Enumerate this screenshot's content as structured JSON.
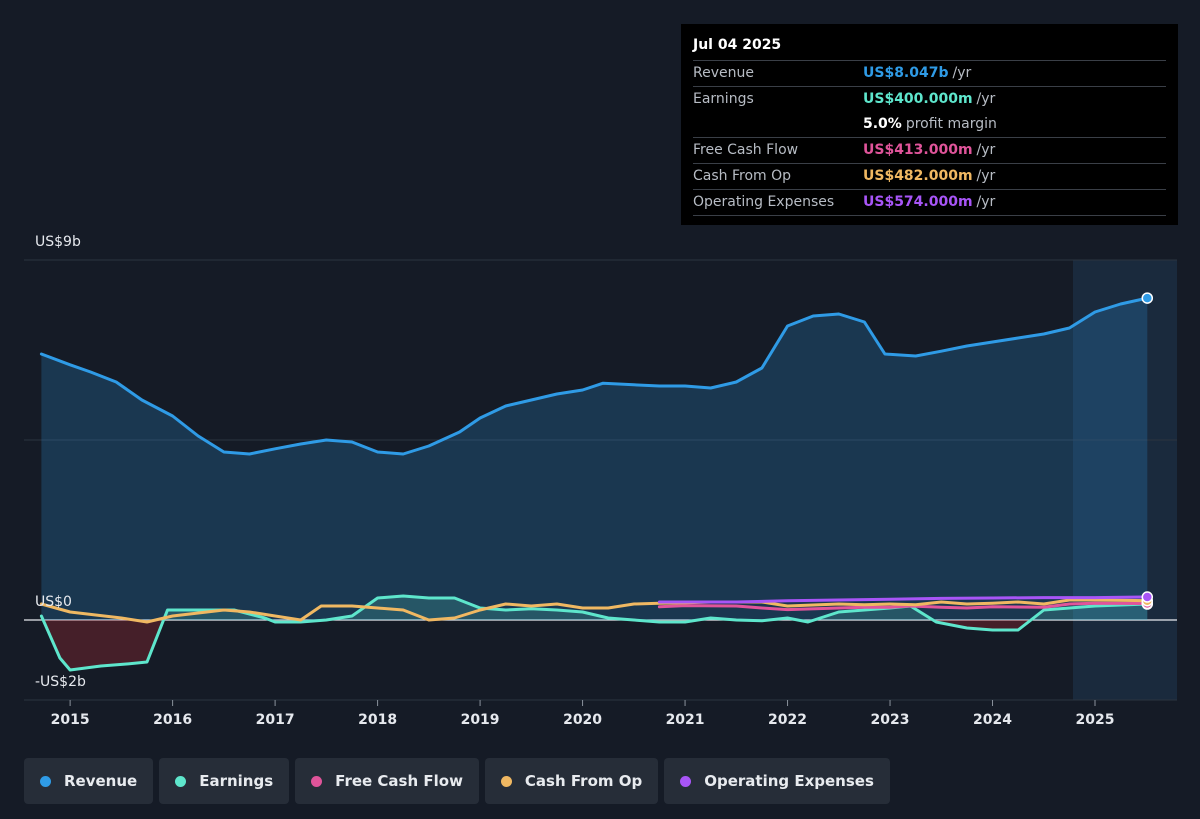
{
  "tooltip": {
    "date": "Jul 04 2025",
    "rows": [
      {
        "label": "Revenue",
        "value": "US$8.047b",
        "unit": "/yr",
        "color": "#2f9be6"
      },
      {
        "label": "Earnings",
        "value": "US$400.000m",
        "unit": "/yr",
        "color": "#5ee6cc"
      },
      {
        "label": "",
        "value": "5.0%",
        "unit": "profit margin",
        "color": "#ffffff"
      },
      {
        "label": "Free Cash Flow",
        "value": "US$413.000m",
        "unit": "/yr",
        "color": "#e0549a"
      },
      {
        "label": "Cash From Op",
        "value": "US$482.000m",
        "unit": "/yr",
        "color": "#f0b862"
      },
      {
        "label": "Operating Expenses",
        "value": "US$574.000m",
        "unit": "/yr",
        "color": "#a855f7"
      }
    ]
  },
  "y_labels": {
    "top": "US$9b",
    "zero": "US$0",
    "bottom": "-US$2b"
  },
  "legend": [
    {
      "label": "Revenue",
      "color": "#2f9be6"
    },
    {
      "label": "Earnings",
      "color": "#5ee6cc"
    },
    {
      "label": "Free Cash Flow",
      "color": "#e0549a"
    },
    {
      "label": "Cash From Op",
      "color": "#f0b862"
    },
    {
      "label": "Operating Expenses",
      "color": "#a855f7"
    }
  ],
  "chart_data": {
    "type": "area",
    "x_tick_labels": [
      "2015",
      "2016",
      "2017",
      "2018",
      "2019",
      "2020",
      "2021",
      "2022",
      "2023",
      "2024",
      "2025"
    ],
    "x_range": [
      2014.55,
      2025.8
    ],
    "ylim": [
      -2,
      9
    ],
    "unit": "US$ billions",
    "series": [
      {
        "name": "Revenue",
        "color": "#2f9be6",
        "fill": true,
        "points": [
          [
            2014.72,
            6.65
          ],
          [
            2015.0,
            6.38
          ],
          [
            2015.2,
            6.2
          ],
          [
            2015.45,
            5.95
          ],
          [
            2015.7,
            5.5
          ],
          [
            2016.0,
            5.1
          ],
          [
            2016.25,
            4.6
          ],
          [
            2016.5,
            4.2
          ],
          [
            2016.75,
            4.15
          ],
          [
            2017.0,
            4.28
          ],
          [
            2017.25,
            4.4
          ],
          [
            2017.5,
            4.5
          ],
          [
            2017.75,
            4.45
          ],
          [
            2018.0,
            4.2
          ],
          [
            2018.25,
            4.15
          ],
          [
            2018.5,
            4.35
          ],
          [
            2018.8,
            4.7
          ],
          [
            2019.0,
            5.05
          ],
          [
            2019.25,
            5.35
          ],
          [
            2019.5,
            5.5
          ],
          [
            2019.75,
            5.65
          ],
          [
            2020.0,
            5.75
          ],
          [
            2020.2,
            5.92
          ],
          [
            2020.5,
            5.88
          ],
          [
            2020.75,
            5.85
          ],
          [
            2021.0,
            5.85
          ],
          [
            2021.25,
            5.8
          ],
          [
            2021.5,
            5.95
          ],
          [
            2021.75,
            6.3
          ],
          [
            2022.0,
            7.35
          ],
          [
            2022.25,
            7.6
          ],
          [
            2022.5,
            7.65
          ],
          [
            2022.75,
            7.45
          ],
          [
            2022.95,
            6.65
          ],
          [
            2023.25,
            6.6
          ],
          [
            2023.5,
            6.72
          ],
          [
            2023.75,
            6.85
          ],
          [
            2024.0,
            6.95
          ],
          [
            2024.25,
            7.05
          ],
          [
            2024.5,
            7.15
          ],
          [
            2024.75,
            7.3
          ],
          [
            2025.0,
            7.7
          ],
          [
            2025.25,
            7.9
          ],
          [
            2025.51,
            8.047
          ]
        ]
      },
      {
        "name": "Earnings",
        "color": "#5ee6cc",
        "fill": true,
        "points": [
          [
            2014.72,
            0.1
          ],
          [
            2014.9,
            -0.95
          ],
          [
            2015.0,
            -1.25
          ],
          [
            2015.3,
            -1.15
          ],
          [
            2015.55,
            -1.1
          ],
          [
            2015.75,
            -1.05
          ],
          [
            2015.95,
            0.25
          ],
          [
            2016.25,
            0.25
          ],
          [
            2016.6,
            0.25
          ],
          [
            2016.9,
            0.05
          ],
          [
            2017.0,
            -0.05
          ],
          [
            2017.25,
            -0.05
          ],
          [
            2017.5,
            0.0
          ],
          [
            2017.75,
            0.1
          ],
          [
            2018.0,
            0.55
          ],
          [
            2018.25,
            0.6
          ],
          [
            2018.5,
            0.55
          ],
          [
            2018.75,
            0.55
          ],
          [
            2019.0,
            0.3
          ],
          [
            2019.25,
            0.25
          ],
          [
            2019.5,
            0.28
          ],
          [
            2019.75,
            0.25
          ],
          [
            2020.0,
            0.2
          ],
          [
            2020.25,
            0.05
          ],
          [
            2020.5,
            0.0
          ],
          [
            2020.75,
            -0.05
          ],
          [
            2021.0,
            -0.05
          ],
          [
            2021.25,
            0.05
          ],
          [
            2021.5,
            0.0
          ],
          [
            2021.75,
            -0.02
          ],
          [
            2022.0,
            0.05
          ],
          [
            2022.2,
            -0.05
          ],
          [
            2022.5,
            0.2
          ],
          [
            2022.75,
            0.25
          ],
          [
            2023.0,
            0.3
          ],
          [
            2023.2,
            0.35
          ],
          [
            2023.45,
            -0.05
          ],
          [
            2023.75,
            -0.2
          ],
          [
            2024.0,
            -0.25
          ],
          [
            2024.25,
            -0.25
          ],
          [
            2024.5,
            0.25
          ],
          [
            2024.75,
            0.3
          ],
          [
            2025.0,
            0.35
          ],
          [
            2025.51,
            0.4
          ]
        ]
      },
      {
        "name": "Free Cash Flow",
        "color": "#e0549a",
        "fill": false,
        "points": [
          [
            2020.75,
            0.33
          ],
          [
            2021.0,
            0.36
          ],
          [
            2021.5,
            0.35
          ],
          [
            2021.75,
            0.3
          ],
          [
            2022.0,
            0.26
          ],
          [
            2022.5,
            0.3
          ],
          [
            2022.75,
            0.32
          ],
          [
            2023.0,
            0.32
          ],
          [
            2023.2,
            0.35
          ],
          [
            2023.5,
            0.32
          ],
          [
            2023.75,
            0.3
          ],
          [
            2024.0,
            0.33
          ],
          [
            2024.5,
            0.32
          ],
          [
            2024.75,
            0.4
          ],
          [
            2025.0,
            0.42
          ],
          [
            2025.51,
            0.413
          ]
        ]
      },
      {
        "name": "Cash From Op",
        "color": "#f0b862",
        "fill": false,
        "points": [
          [
            2014.72,
            0.4
          ],
          [
            2015.0,
            0.2
          ],
          [
            2015.5,
            0.05
          ],
          [
            2015.75,
            -0.05
          ],
          [
            2016.0,
            0.1
          ],
          [
            2016.5,
            0.25
          ],
          [
            2016.75,
            0.2
          ],
          [
            2017.0,
            0.1
          ],
          [
            2017.25,
            0.0
          ],
          [
            2017.45,
            0.35
          ],
          [
            2017.75,
            0.35
          ],
          [
            2018.0,
            0.3
          ],
          [
            2018.25,
            0.25
          ],
          [
            2018.5,
            0.0
          ],
          [
            2018.75,
            0.05
          ],
          [
            2019.0,
            0.25
          ],
          [
            2019.25,
            0.4
          ],
          [
            2019.5,
            0.35
          ],
          [
            2019.75,
            0.4
          ],
          [
            2020.0,
            0.3
          ],
          [
            2020.25,
            0.3
          ],
          [
            2020.5,
            0.4
          ],
          [
            2020.75,
            0.42
          ],
          [
            2021.0,
            0.43
          ],
          [
            2021.25,
            0.45
          ],
          [
            2021.5,
            0.45
          ],
          [
            2021.75,
            0.45
          ],
          [
            2022.0,
            0.35
          ],
          [
            2022.5,
            0.4
          ],
          [
            2022.75,
            0.38
          ],
          [
            2023.0,
            0.4
          ],
          [
            2023.25,
            0.38
          ],
          [
            2023.5,
            0.45
          ],
          [
            2023.75,
            0.4
          ],
          [
            2024.0,
            0.42
          ],
          [
            2024.25,
            0.45
          ],
          [
            2024.5,
            0.4
          ],
          [
            2024.75,
            0.5
          ],
          [
            2025.0,
            0.5
          ],
          [
            2025.51,
            0.482
          ]
        ]
      },
      {
        "name": "Operating Expenses",
        "color": "#a855f7",
        "fill": false,
        "points": [
          [
            2020.75,
            0.45
          ],
          [
            2021.0,
            0.45
          ],
          [
            2021.5,
            0.45
          ],
          [
            2022.0,
            0.48
          ],
          [
            2022.5,
            0.5
          ],
          [
            2023.0,
            0.52
          ],
          [
            2023.5,
            0.54
          ],
          [
            2024.0,
            0.55
          ],
          [
            2024.5,
            0.56
          ],
          [
            2025.0,
            0.56
          ],
          [
            2025.51,
            0.574
          ]
        ]
      }
    ]
  }
}
